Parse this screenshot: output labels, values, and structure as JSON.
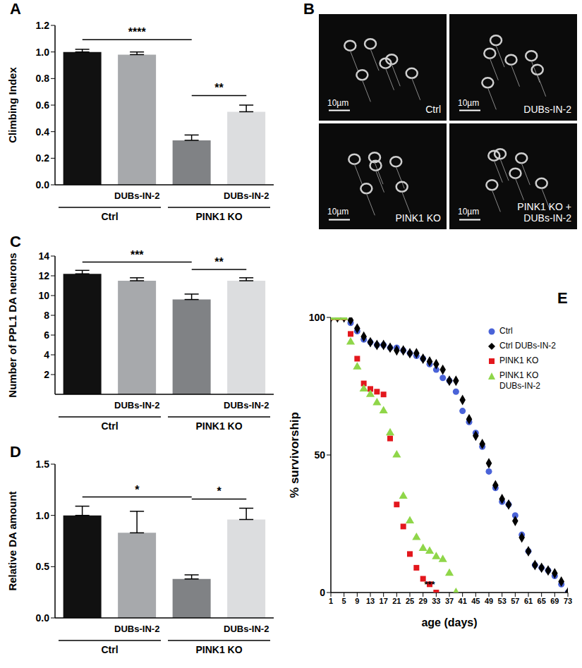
{
  "chart_data": [
    {
      "panel": "A",
      "type": "bar",
      "y_label": "Climbing Index",
      "categories": [
        null,
        "DUBs-IN-2",
        null,
        "DUBs-IN-2"
      ],
      "groups": [
        {
          "label": "Ctrl",
          "categories": [
            0,
            1
          ]
        },
        {
          "label": "PINK1 KO",
          "categories": [
            2,
            3
          ]
        }
      ],
      "values": [
        1.0,
        0.98,
        0.335,
        0.55
      ],
      "errors": [
        0.02,
        0.02,
        0.04,
        0.05
      ],
      "colors": [
        "#111111",
        "#a7a9ac",
        "#808285",
        "#dcdddf"
      ],
      "ylim": [
        0,
        1.2
      ],
      "yticks": [
        {
          "value": 0,
          "label": "0.0"
        },
        {
          "value": 0.2,
          "label": "0.2"
        },
        {
          "value": 0.4,
          "label": "0.4"
        },
        {
          "value": 0.6,
          "label": "0.6"
        },
        {
          "value": 0.8,
          "label": "0.8"
        },
        {
          "value": 1,
          "label": "1.0"
        },
        {
          "value": 1.2,
          "label": "1.2"
        }
      ],
      "annotations": [
        {
          "from": 0,
          "to": 2,
          "label": "****"
        },
        {
          "from": 2,
          "to": 3,
          "label": "**"
        }
      ]
    },
    {
      "panel": "B",
      "type": "image",
      "images": [
        {
          "label": "Ctrl"
        },
        {
          "label": "DUBs-IN-2"
        },
        {
          "label": "PINK1 KO"
        },
        {
          "label": "PINK1 KO + DUBs-IN-2"
        }
      ],
      "scale_bar": "10µm"
    },
    {
      "panel": "C",
      "type": "bar",
      "y_label": "Number of PPL1 DA neurons",
      "categories": [
        null,
        "DUBs-IN-2",
        null,
        "DUBs-IN-2"
      ],
      "groups": [
        {
          "label": "Ctrl",
          "categories": [
            0,
            1
          ]
        },
        {
          "label": "PINK1 KO",
          "categories": [
            2,
            3
          ]
        }
      ],
      "values": [
        12.2,
        11.5,
        9.6,
        11.5
      ],
      "errors": [
        0.35,
        0.3,
        0.55,
        0.3
      ],
      "colors": [
        "#111111",
        "#a7a9ac",
        "#808285",
        "#dcdddf"
      ],
      "ylim": [
        0,
        14
      ],
      "yticks": [
        2,
        4,
        6,
        8,
        10,
        12,
        14
      ],
      "annotations": [
        {
          "from": 0,
          "to": 2,
          "label": "***"
        },
        {
          "from": 2,
          "to": 3,
          "label": "**"
        }
      ]
    },
    {
      "panel": "D",
      "type": "bar",
      "y_label": "Relative DA amount",
      "categories": [
        null,
        "DUBs-IN-2",
        null,
        "DUBs-IN-2"
      ],
      "groups": [
        {
          "label": "Ctrl",
          "categories": [
            0,
            1
          ]
        },
        {
          "label": "PINK1 KO",
          "categories": [
            2,
            3
          ]
        }
      ],
      "values": [
        1.0,
        0.83,
        0.38,
        0.96
      ],
      "errors": [
        0.09,
        0.21,
        0.04,
        0.11
      ],
      "colors": [
        "#111111",
        "#a7a9ac",
        "#808285",
        "#dcdddf"
      ],
      "ylim": [
        0,
        1.5
      ],
      "yticks": [
        {
          "value": 0,
          "label": "0.0"
        },
        {
          "value": 0.5,
          "label": "0.5"
        },
        {
          "value": 1,
          "label": "1.0"
        },
        {
          "value": 1.5,
          "label": "1.5"
        }
      ],
      "annotations": [
        {
          "from": 0,
          "to": 2,
          "label": "*"
        },
        {
          "from": 2,
          "to": 3,
          "label": "*"
        }
      ]
    },
    {
      "panel": "E",
      "type": "scatter",
      "x_label": "age (days)",
      "y_label": "% survivorship",
      "legend": "top right",
      "x": [
        1,
        3,
        5,
        7,
        9,
        11,
        13,
        15,
        17,
        19,
        21,
        23,
        25,
        27,
        29,
        31,
        33,
        35,
        37,
        39,
        41,
        43,
        45,
        47,
        49,
        51,
        53,
        55,
        57,
        59,
        61,
        63,
        65,
        67,
        69,
        71,
        73
      ],
      "xlim": [
        1,
        73
      ],
      "xticks": [
        1,
        5,
        9,
        13,
        17,
        21,
        25,
        29,
        33,
        37,
        41,
        45,
        49,
        53,
        57,
        61,
        65,
        69,
        73
      ],
      "ylim": [
        0,
        100
      ],
      "yticks": [
        0,
        50,
        100
      ],
      "series": [
        {
          "name": "Ctrl",
          "color": "#4a63d8",
          "marker": "circle",
          "values": [
            100,
            100,
            100,
            98,
            95,
            92,
            91,
            90,
            90,
            89,
            89,
            88,
            87,
            86,
            85,
            83,
            81,
            78,
            77,
            73,
            66,
            62,
            58,
            53,
            44,
            38,
            33,
            32,
            28,
            21,
            15,
            10,
            9,
            8,
            6,
            3,
            0
          ]
        },
        {
          "name": "Ctrl DUBs-IN-2",
          "color": "#000000",
          "marker": "diamond",
          "values": [
            100,
            100,
            100,
            99,
            96,
            93,
            91,
            90,
            90,
            89,
            88,
            88,
            87,
            87,
            85,
            84,
            83,
            81,
            77,
            77,
            70,
            63,
            57,
            54,
            47,
            39,
            34,
            32,
            26,
            20,
            15,
            10,
            9,
            8,
            7,
            4,
            0
          ]
        },
        {
          "name": "PINK1 KO",
          "color": "#e3171d",
          "marker": "square",
          "values": [
            100,
            100,
            100,
            94,
            85,
            76,
            74,
            73,
            72,
            56,
            32,
            24,
            14,
            9,
            5,
            3,
            0,
            null,
            null,
            null,
            null,
            null,
            null,
            null,
            null,
            null,
            null,
            null,
            null,
            null,
            null,
            null,
            null,
            null,
            null,
            null,
            null
          ]
        },
        {
          "name": "PINK1 KO DUBs-IN-2",
          "color": "#8fd649",
          "marker": "triangle",
          "values": [
            100,
            100,
            100,
            91,
            82,
            74,
            72,
            69,
            66,
            58,
            50,
            35,
            26,
            20,
            16,
            15,
            13,
            12,
            7,
            0,
            null,
            null,
            null,
            null,
            null,
            null,
            null,
            null,
            null,
            null,
            null,
            null,
            null,
            null,
            null,
            null,
            null
          ]
        }
      ],
      "annotations": [
        {
          "x": 31,
          "y": 3,
          "label": "***"
        }
      ]
    }
  ]
}
